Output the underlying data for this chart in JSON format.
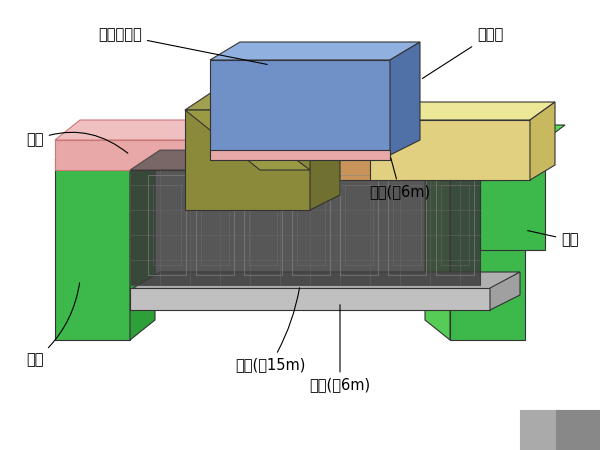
{
  "title": "",
  "background_color": "#ffffff",
  "labels": {
    "san_suo_an": "散索鞍支墩",
    "qian_mao_shi": "前锚室",
    "mao_liang": "帽梁",
    "ding_ban": "顶板(厚6m)",
    "nei_chen": "内衬",
    "tian_xin": "填芯(厚15m)",
    "di_ban": "底板(厚6m)",
    "lian_qiang": "连墙"
  },
  "colors": {
    "blue_top": "#7090c8",
    "olive_block": "#8a8a3a",
    "yellow_block": "#d4c870",
    "orange_block": "#d4935a",
    "pink_cap": "#e8a0a0",
    "green_wall": "#4caf50",
    "dark_inner": "#555555",
    "gray_floor": "#aaaaaa",
    "top_slab": "#c8a060",
    "red_pink": "#c88080",
    "inner_lining": "#4caf50"
  }
}
